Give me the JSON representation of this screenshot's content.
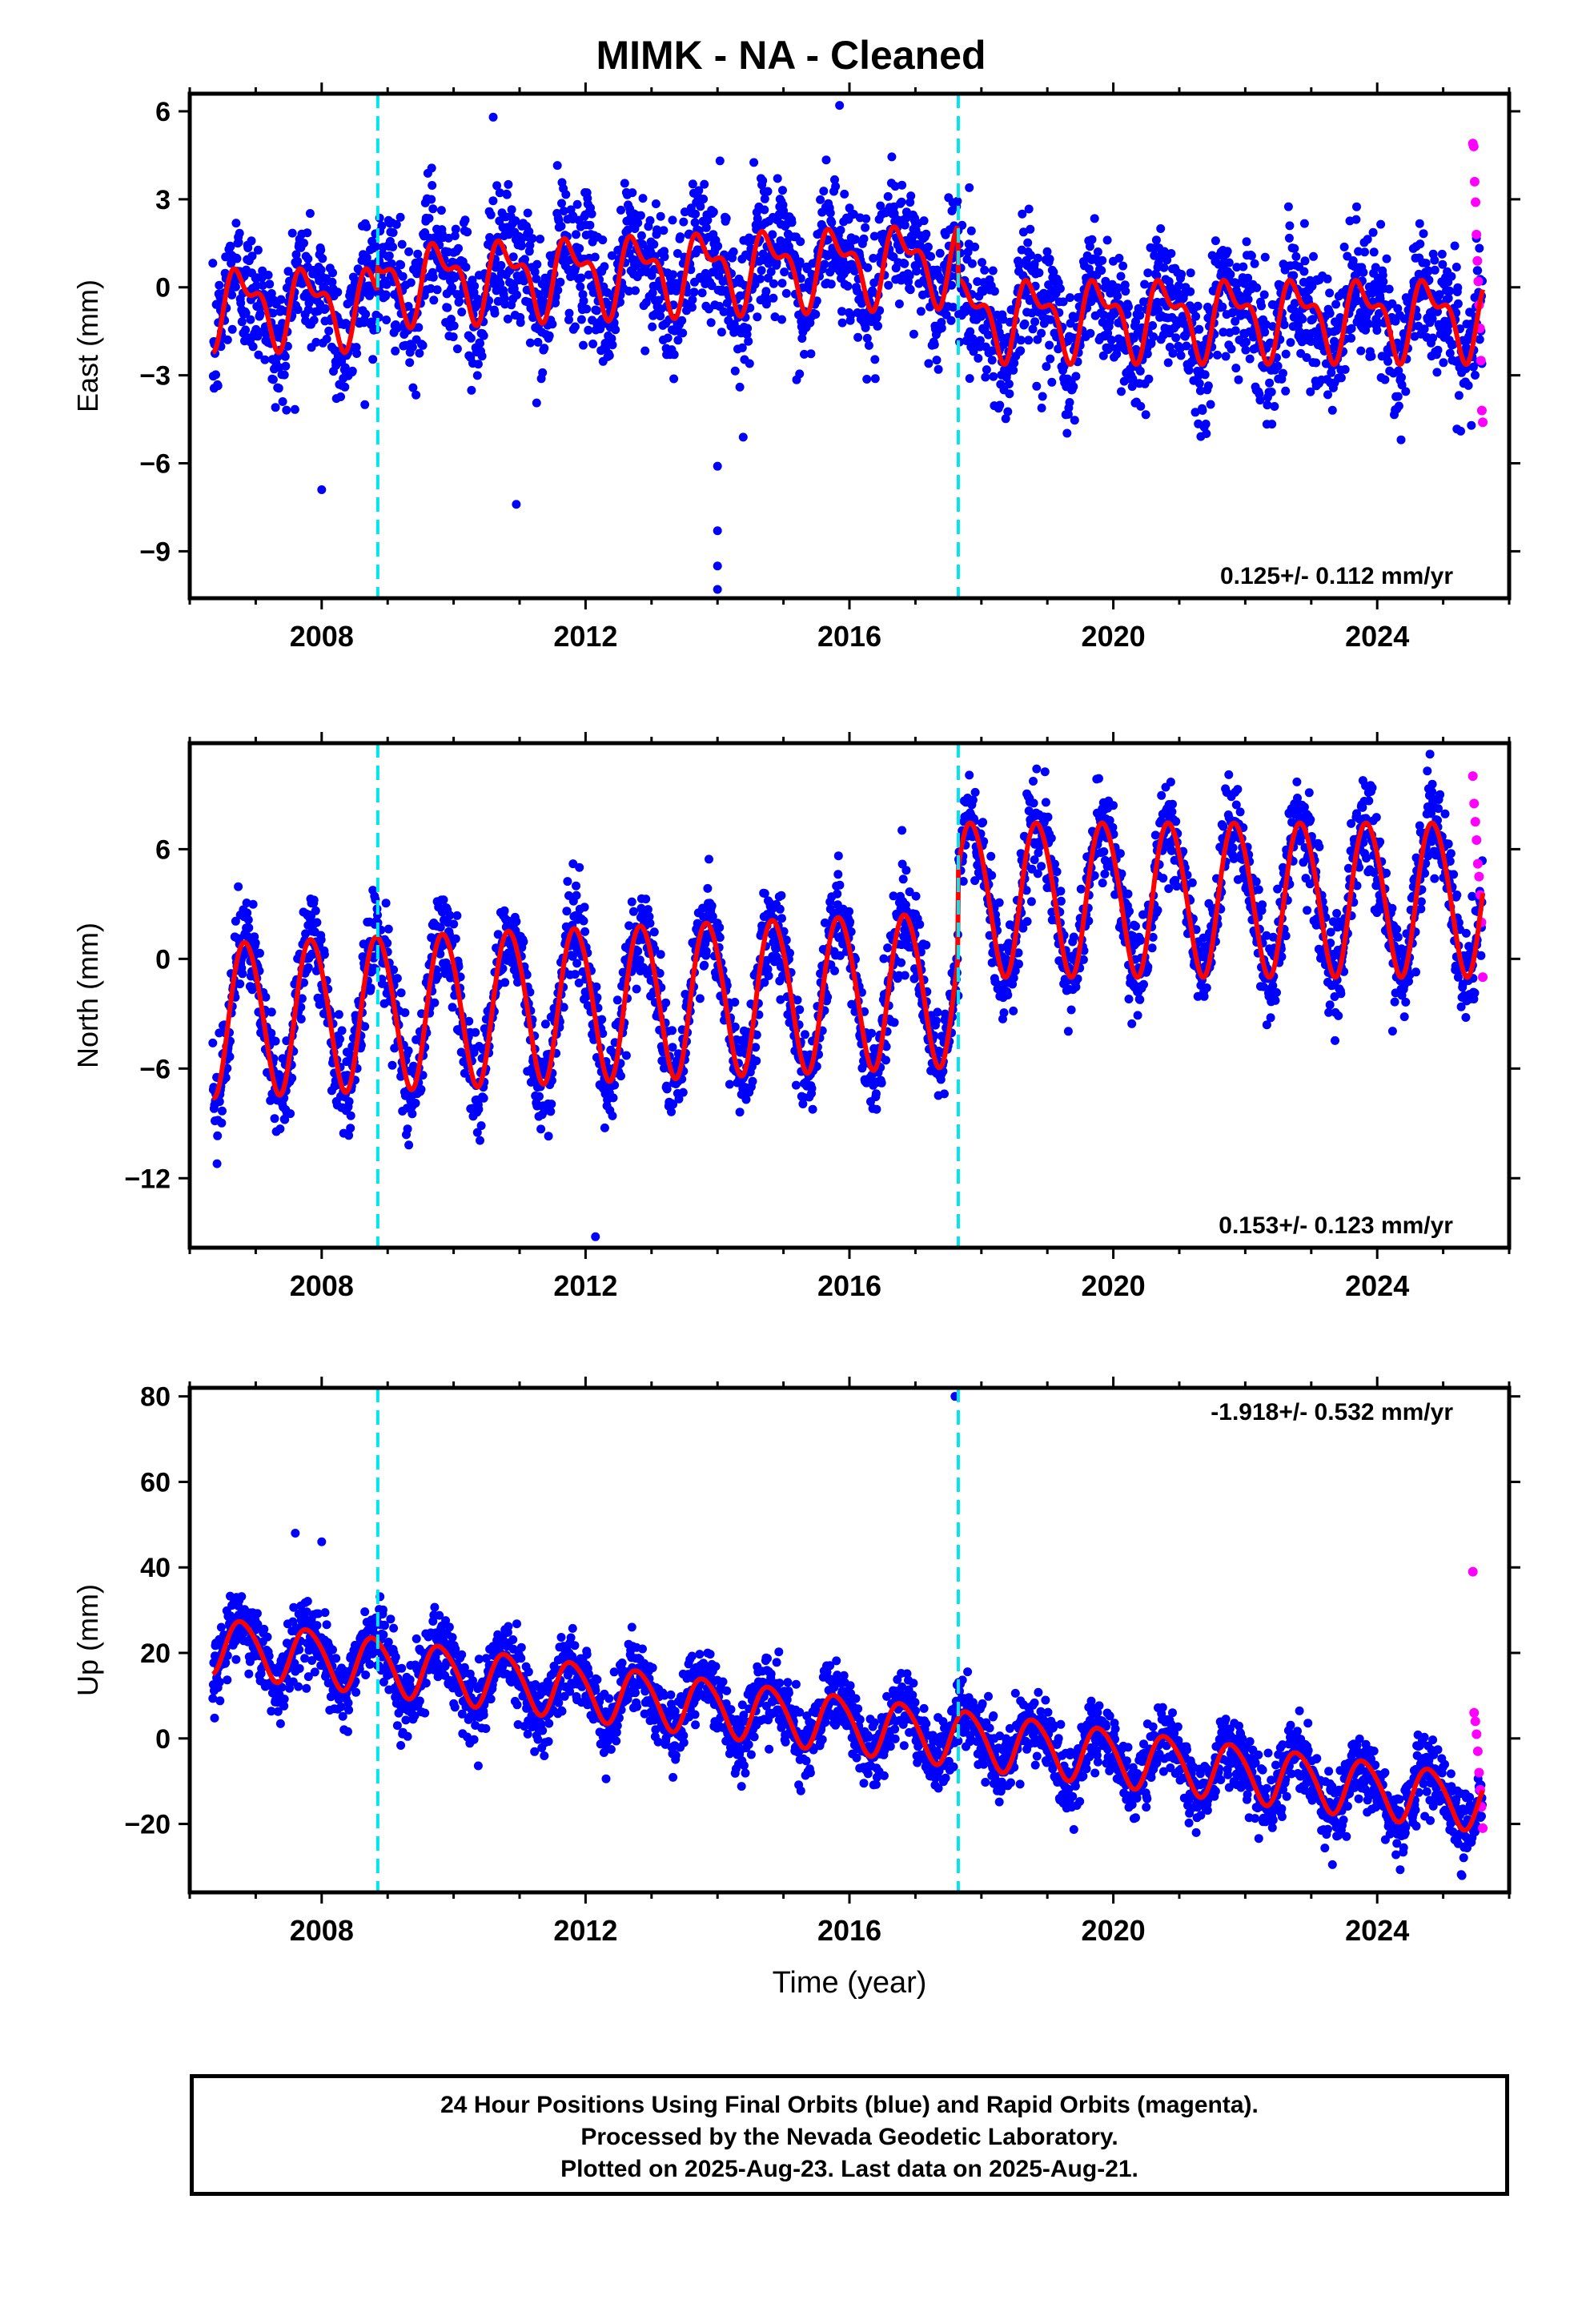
{
  "title": "MIMK  - NA - Cleaned",
  "footer": {
    "line1": "24 Hour Positions Using Final Orbits (blue) and Rapid Orbits (magenta).",
    "line2": "Processed by the Nevada Geodetic Laboratory.",
    "line3": "Plotted on 2025-Aug-23. Last data on 2025-Aug-21."
  },
  "colors": {
    "final_orbits": "#0000ff",
    "rapid_orbits": "#ff00ff",
    "model_fit": "#ff0000",
    "offset_lines": "#00e5ee",
    "frame": "#000000"
  },
  "chart_data": [
    {
      "type": "scatter",
      "panel": "east",
      "ylabel": "East (mm)",
      "xlabel": "",
      "xlim": [
        2006.0,
        2026.0
      ],
      "ylim": [
        -10.6,
        6.6
      ],
      "yticks": [
        6,
        3,
        0,
        -3,
        -6,
        -9
      ],
      "ytick_labels": [
        "6",
        "3",
        "0",
        "−3",
        "−6",
        "−9"
      ],
      "xticks": [
        2008,
        2012,
        2016,
        2020,
        2024
      ],
      "xtick_labels": [
        "2008",
        "2012",
        "2016",
        "2020",
        "2024"
      ],
      "offset_lines_x": [
        2008.85,
        2017.65
      ],
      "rate_label": "0.125+/- 0.112 mm/yr",
      "rate_position": "bottom-right",
      "model": {
        "start": 2006.35,
        "end": 2025.6,
        "segments": [
          {
            "x0": 2006.35,
            "x1": 2008.85,
            "offset": -0.6
          },
          {
            "x0": 2008.85,
            "x1": 2017.65,
            "offset": 0.2,
            "slope": 0.08
          },
          {
            "x0": 2017.65,
            "x1": 2025.6,
            "offset": -1.0
          }
        ],
        "annual_amp": 1.1,
        "semiannual_amp": 0.6,
        "phase": 0.55,
        "noise": 1.1
      },
      "outliers": [
        {
          "x": 2008.0,
          "y": -6.9
        },
        {
          "x": 2010.95,
          "y": -7.4
        },
        {
          "x": 2014.0,
          "y": -6.1
        },
        {
          "x": 2014.0,
          "y": -8.3
        },
        {
          "x": 2014.0,
          "y": -9.5
        },
        {
          "x": 2014.0,
          "y": -10.3
        },
        {
          "x": 2010.6,
          "y": 5.8
        },
        {
          "x": 2015.85,
          "y": 6.2
        }
      ],
      "rapid": {
        "x_range": [
          2025.45,
          2025.6
        ],
        "y": [
          4.9,
          4.8,
          3.6,
          2.9,
          1.8,
          0.9,
          0.2,
          -0.6,
          -1.4,
          -2.5,
          -4.2,
          -4.6
        ]
      }
    },
    {
      "type": "scatter",
      "panel": "north",
      "ylabel": "North (mm)",
      "xlabel": "",
      "xlim": [
        2006.0,
        2026.0
      ],
      "ylim": [
        -15.8,
        11.8
      ],
      "yticks": [
        6,
        0,
        -6,
        -12
      ],
      "ytick_labels": [
        "6",
        "0",
        "−6",
        "−12"
      ],
      "xticks": [
        2008,
        2012,
        2016,
        2020,
        2024
      ],
      "xtick_labels": [
        "2008",
        "2012",
        "2016",
        "2020",
        "2024"
      ],
      "offset_lines_x": [
        2008.85,
        2017.65
      ],
      "rate_label": "0.153+/- 0.123 mm/yr",
      "rate_position": "bottom-right",
      "model": {
        "start": 2006.35,
        "end": 2025.6,
        "segments": [
          {
            "x0": 2006.35,
            "x1": 2017.65,
            "offset": -3.2,
            "slope": 0.15
          },
          {
            "x0": 2017.65,
            "x1": 2025.6,
            "offset": 3.4
          }
        ],
        "annual_amp": 4.2,
        "semiannual_amp": 0.3,
        "phase": 0.6,
        "noise": 1.3
      },
      "outliers": [
        {
          "x": 2012.15,
          "y": -15.2
        },
        {
          "x": 2024.8,
          "y": 11.2
        }
      ],
      "rapid": {
        "x_range": [
          2025.45,
          2025.6
        ],
        "y": [
          10.0,
          8.5,
          7.5,
          6.5,
          5.2,
          4.5,
          3.5,
          2.0,
          -1.0
        ]
      }
    },
    {
      "type": "scatter",
      "panel": "up",
      "ylabel": "Up (mm)",
      "xlabel": "Time (year)",
      "xlim": [
        2006.0,
        2026.0
      ],
      "ylim": [
        -36.0,
        82.0
      ],
      "yticks": [
        80,
        60,
        40,
        20,
        0,
        -20
      ],
      "ytick_labels": [
        "80",
        "60",
        "40",
        "20",
        "0",
        "−20"
      ],
      "xticks": [
        2008,
        2012,
        2016,
        2020,
        2024
      ],
      "xtick_labels": [
        "2008",
        "2012",
        "2016",
        "2020",
        "2024"
      ],
      "offset_lines_x": [
        2008.85,
        2017.65
      ],
      "rate_label": "-1.918+/- 0.532 mm/yr",
      "rate_position": "top-right",
      "model": {
        "start": 2006.35,
        "end": 2025.6,
        "segments": [
          {
            "x0": 2006.35,
            "x1": 2025.6,
            "offset": 22.0,
            "slope": -1.918,
            "origin": 2006.35
          }
        ],
        "annual_amp": 6.5,
        "semiannual_amp": 0.8,
        "phase": 0.55,
        "noise": 4.0
      },
      "outliers": [
        {
          "x": 2017.6,
          "y": 80.0
        },
        {
          "x": 2007.6,
          "y": 48.0
        },
        {
          "x": 2008.0,
          "y": 46.0
        }
      ],
      "rapid": {
        "x_range": [
          2025.45,
          2025.6
        ],
        "y": [
          39.0,
          6.0,
          4.0,
          1.0,
          -3.0,
          -8.0,
          -12.0,
          -16.0,
          -21.0
        ]
      }
    }
  ]
}
